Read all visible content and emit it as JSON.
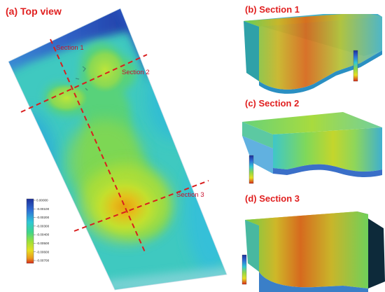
{
  "panels": {
    "top_view": {
      "title": "(a) Top view"
    },
    "section1": {
      "title": "(b) Section 1"
    },
    "section2": {
      "title": "(c) Section 2"
    },
    "section3": {
      "title": "(d) Section 3"
    }
  },
  "section_lines": [
    {
      "label": "Section 1"
    },
    {
      "label": "Section 2"
    },
    {
      "label": "Section 3"
    }
  ],
  "colorbar": {
    "ticks": [
      "0.00000",
      "-0.00100",
      "-0.00200",
      "-0.00300",
      "-0.00400",
      "-0.00500",
      "-0.00600",
      "-0.00700"
    ]
  },
  "colors": {
    "title_red": "#e01f1f",
    "section_line": "#d91e1e",
    "scale_max": "#1d2f9a",
    "scale_min": "#d62a1a"
  }
}
